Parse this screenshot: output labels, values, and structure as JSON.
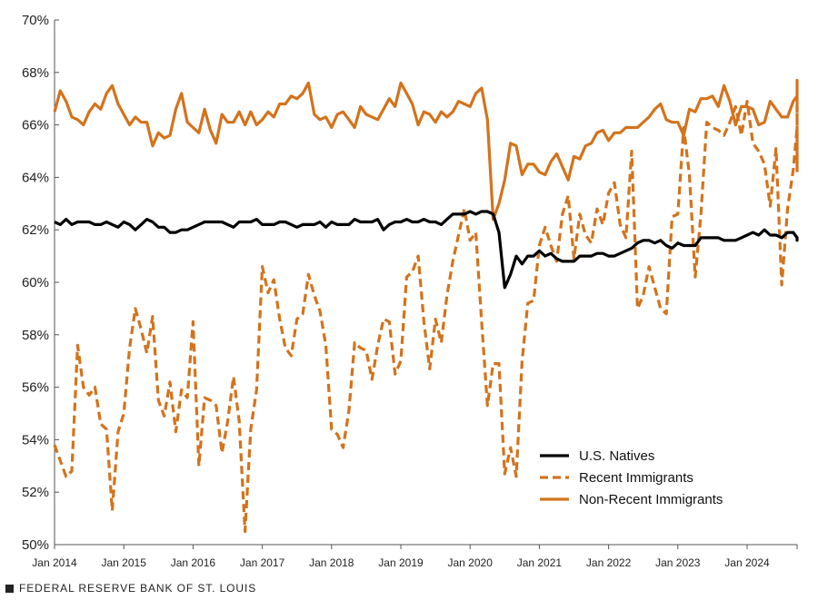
{
  "footer": {
    "source": "FEDERAL RESERVE BANK OF ST. LOUIS"
  },
  "colors": {
    "natives": "#000000",
    "recent": "#d3731c",
    "nonrecent": "#d3731c",
    "axis": "#555555"
  },
  "chart_data": {
    "type": "line",
    "title": "",
    "xlabel": "",
    "ylabel": "",
    "ylim": [
      50,
      70
    ],
    "y_ticks": [
      "50%",
      "52%",
      "54%",
      "56%",
      "58%",
      "60%",
      "62%",
      "64%",
      "66%",
      "68%",
      "70%"
    ],
    "x_ticks": [
      "Jan 2014",
      "Jan 2015",
      "Jan 2016",
      "Jan 2017",
      "Jan 2018",
      "Jan 2019",
      "Jan 2020",
      "Jan 2021",
      "Jan 2022",
      "Jan 2023",
      "Jan 2024"
    ],
    "x_start": "Jan 2014",
    "x_frequency": "monthly",
    "legend_position": "bottom-right",
    "series": [
      {
        "name": "U.S. Natives",
        "style": "solid",
        "color": "#000000",
        "values": [
          62.3,
          62.2,
          62.4,
          62.2,
          62.3,
          62.3,
          62.3,
          62.2,
          62.2,
          62.3,
          62.2,
          62.1,
          62.3,
          62.2,
          62.0,
          62.2,
          62.4,
          62.3,
          62.1,
          62.1,
          61.9,
          61.9,
          62.0,
          62.0,
          62.1,
          62.2,
          62.3,
          62.3,
          62.3,
          62.3,
          62.2,
          62.1,
          62.3,
          62.3,
          62.3,
          62.4,
          62.2,
          62.2,
          62.2,
          62.3,
          62.3,
          62.2,
          62.1,
          62.2,
          62.2,
          62.2,
          62.3,
          62.1,
          62.3,
          62.2,
          62.2,
          62.2,
          62.4,
          62.3,
          62.3,
          62.3,
          62.4,
          62.0,
          62.2,
          62.3,
          62.3,
          62.4,
          62.3,
          62.3,
          62.4,
          62.3,
          62.3,
          62.2,
          62.4,
          62.6,
          62.6,
          62.6,
          62.7,
          62.6,
          62.7,
          62.7,
          62.6,
          61.9,
          59.8,
          60.3,
          61.0,
          60.7,
          61.0,
          61.0,
          61.2,
          61.0,
          61.1,
          60.9,
          60.8,
          60.8,
          60.8,
          61.0,
          61.0,
          61.0,
          61.1,
          61.1,
          61.0,
          61.0,
          61.1,
          61.2,
          61.3,
          61.5,
          61.6,
          61.6,
          61.5,
          61.6,
          61.4,
          61.3,
          61.5,
          61.4,
          61.4,
          61.4,
          61.7,
          61.7,
          61.7,
          61.7,
          61.6,
          61.6,
          61.6,
          61.7,
          61.8,
          61.9,
          61.8,
          62.0,
          61.8,
          61.8,
          61.7,
          61.9,
          61.9,
          61.7,
          61.6,
          61.7,
          61.6,
          61.7,
          61.6,
          61.6
        ]
      },
      {
        "name": "Recent Immigrants",
        "style": "dashed",
        "color": "#d3731c",
        "values": [
          53.8,
          53.2,
          52.6,
          52.8,
          57.6,
          56.0,
          55.7,
          56.0,
          54.6,
          54.4,
          51.3,
          54.3,
          55.0,
          57.5,
          59.0,
          58.2,
          57.3,
          58.7,
          55.5,
          54.9,
          56.2,
          54.3,
          55.9,
          55.6,
          58.5,
          53.0,
          55.6,
          55.5,
          55.3,
          53.5,
          54.7,
          56.4,
          54.7,
          50.5,
          54.4,
          55.9,
          60.6,
          59.6,
          60.1,
          58.6,
          57.5,
          57.2,
          58.6,
          58.8,
          60.3,
          59.5,
          58.9,
          57.6,
          54.4,
          54.2,
          53.7,
          55.1,
          57.7,
          57.5,
          57.4,
          56.3,
          57.6,
          58.6,
          58.5,
          56.5,
          57.0,
          60.2,
          60.4,
          61.0,
          58.5,
          56.7,
          58.6,
          57.7,
          59.5,
          60.8,
          61.8,
          62.8,
          61.6,
          61.9,
          58.5,
          55.3,
          56.9,
          56.9,
          52.7,
          53.7,
          52.6,
          57.0,
          59.2,
          59.3,
          61.4,
          62.1,
          61.4,
          60.8,
          62.6,
          63.3,
          60.9,
          62.6,
          61.8,
          61.5,
          62.8,
          62.2,
          63.4,
          63.8,
          62.2,
          61.7,
          65.0,
          59.0,
          59.5,
          60.6,
          59.8,
          59.0,
          58.8,
          62.5,
          62.6,
          65.9,
          64.1,
          60.2,
          62.6,
          66.1,
          65.9,
          65.8,
          65.6,
          66.1,
          66.7,
          65.6,
          66.9,
          65.3,
          65.0,
          64.5,
          62.9,
          65.1,
          59.9,
          62.8,
          64.3,
          65.9,
          66.7,
          65.4,
          64.7,
          64.2,
          65.7
        ]
      },
      {
        "name": "Non-Recent Immigrants",
        "style": "solid",
        "color": "#d3731c",
        "values": [
          66.5,
          67.3,
          66.9,
          66.3,
          66.2,
          66.0,
          66.5,
          66.8,
          66.6,
          67.2,
          67.5,
          66.8,
          66.4,
          66.0,
          66.3,
          66.1,
          66.1,
          65.2,
          65.7,
          65.5,
          65.6,
          66.6,
          67.2,
          66.1,
          65.9,
          65.7,
          66.6,
          65.8,
          65.3,
          66.4,
          66.1,
          66.1,
          66.5,
          66.0,
          66.5,
          66.0,
          66.2,
          66.5,
          66.3,
          66.8,
          66.8,
          67.1,
          67.0,
          67.2,
          67.6,
          66.4,
          66.2,
          66.3,
          65.9,
          66.4,
          66.5,
          66.2,
          65.9,
          66.7,
          66.4,
          66.3,
          66.2,
          66.6,
          67.0,
          66.7,
          67.6,
          67.2,
          66.8,
          66.0,
          66.5,
          66.4,
          66.1,
          66.5,
          66.3,
          66.5,
          66.9,
          66.8,
          66.7,
          67.2,
          67.4,
          66.2,
          62.4,
          63.0,
          63.9,
          65.3,
          65.2,
          64.1,
          64.5,
          64.5,
          64.2,
          64.1,
          64.6,
          64.9,
          64.4,
          63.9,
          64.8,
          64.7,
          65.2,
          65.3,
          65.7,
          65.8,
          65.4,
          65.7,
          65.7,
          65.9,
          65.9,
          65.9,
          66.1,
          66.3,
          66.6,
          66.8,
          66.2,
          66.1,
          66.1,
          65.6,
          66.6,
          66.5,
          67.0,
          67.0,
          67.1,
          66.7,
          67.5,
          66.9,
          66.0,
          66.7,
          66.7,
          66.6,
          66.0,
          66.1,
          66.9,
          66.6,
          66.3,
          66.3,
          66.9,
          67.1,
          67.3,
          67.7,
          67.5,
          66.7
        ]
      }
    ]
  }
}
